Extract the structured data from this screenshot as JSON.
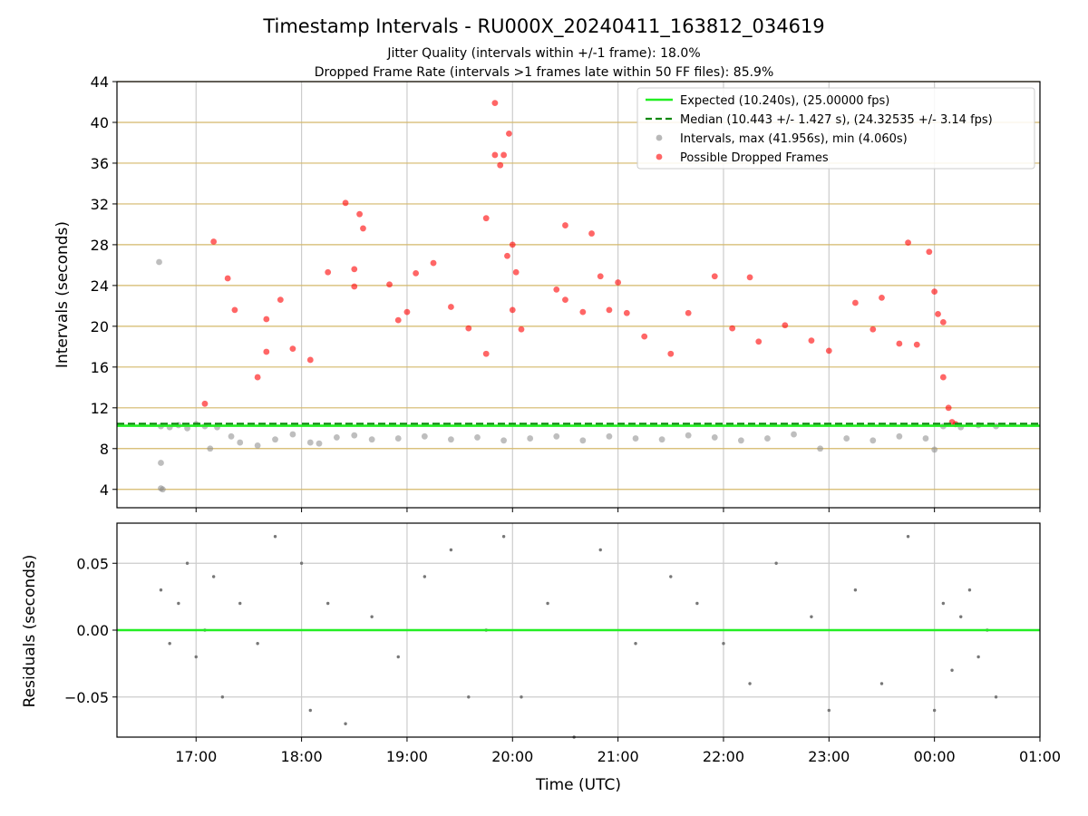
{
  "title": "Timestamp Intervals - RU000X_20240411_163812_034619",
  "subtitle_1": "Jitter Quality (intervals within +/-1 frame): 18.0%",
  "subtitle_2": "Dropped Frame Rate (intervals >1 frames late within 50 FF files): 85.9%",
  "colors": {
    "expected": "#22ee22",
    "median": "#118811",
    "intervals": "#888888",
    "dropped": "#ff0000",
    "yhgrid": "#d4b86a",
    "grid": "#cccccc"
  },
  "chart_data": [
    {
      "type": "scatter",
      "panel": "intervals",
      "ylabel": "Intervals (seconds)",
      "xlim": [
        "16:15",
        "01:00"
      ],
      "ylim": [
        2.2,
        44
      ],
      "yticks": [
        "4",
        "8",
        "12",
        "16",
        "20",
        "24",
        "28",
        "32",
        "36",
        "40",
        "44"
      ],
      "grid": true,
      "legend_position": "top-right",
      "legend": [
        "Expected (10.240s), (25.00000 fps)",
        "Median (10.443 +/- 1.427 s), (24.32535 +/- 3.14 fps)",
        "Intervals, max (41.956s), min (4.060s)",
        "Possible Dropped Frames"
      ],
      "expected_line": 10.24,
      "median_line": 10.443,
      "series": [
        {
          "name": "Intervals, max (41.956s), min (4.060s)",
          "points": [
            [
              "16:39",
              26.3
            ],
            [
              "16:40",
              6.6
            ],
            [
              "16:40",
              4.1
            ],
            [
              "16:41",
              4.0
            ],
            [
              "16:40",
              10.2
            ],
            [
              "16:45",
              10.1
            ],
            [
              "16:50",
              10.3
            ],
            [
              "16:55",
              10.0
            ],
            [
              "17:00",
              10.4
            ],
            [
              "17:05",
              10.2
            ],
            [
              "17:08",
              8.0
            ],
            [
              "17:12",
              10.1
            ],
            [
              "17:20",
              9.2
            ],
            [
              "17:25",
              8.6
            ],
            [
              "17:35",
              8.3
            ],
            [
              "17:45",
              8.9
            ],
            [
              "17:55",
              9.4
            ],
            [
              "18:05",
              8.6
            ],
            [
              "18:10",
              8.5
            ],
            [
              "18:20",
              9.1
            ],
            [
              "18:30",
              9.3
            ],
            [
              "18:40",
              8.9
            ],
            [
              "18:55",
              9.0
            ],
            [
              "19:10",
              9.2
            ],
            [
              "19:25",
              8.9
            ],
            [
              "19:40",
              9.1
            ],
            [
              "19:55",
              8.8
            ],
            [
              "20:10",
              9.0
            ],
            [
              "20:25",
              9.2
            ],
            [
              "20:40",
              8.8
            ],
            [
              "20:55",
              9.2
            ],
            [
              "21:10",
              9.0
            ],
            [
              "21:25",
              8.9
            ],
            [
              "21:40",
              9.3
            ],
            [
              "21:55",
              9.1
            ],
            [
              "22:10",
              8.8
            ],
            [
              "22:25",
              9.0
            ],
            [
              "22:40",
              9.4
            ],
            [
              "22:55",
              8.0
            ],
            [
              "23:10",
              9.0
            ],
            [
              "23:25",
              8.8
            ],
            [
              "23:40",
              9.2
            ],
            [
              "23:55",
              9.0
            ],
            [
              "00:00",
              7.9
            ],
            [
              "00:05",
              10.2
            ],
            [
              "00:15",
              10.1
            ],
            [
              "00:25",
              10.3
            ],
            [
              "00:35",
              10.2
            ]
          ]
        },
        {
          "name": "Possible Dropped Frames",
          "points": [
            [
              "17:05",
              12.4
            ],
            [
              "17:10",
              28.3
            ],
            [
              "17:18",
              24.7
            ],
            [
              "17:22",
              21.6
            ],
            [
              "17:35",
              15.0
            ],
            [
              "17:40",
              20.7
            ],
            [
              "17:48",
              22.6
            ],
            [
              "17:40",
              17.5
            ],
            [
              "17:55",
              17.8
            ],
            [
              "18:05",
              16.7
            ],
            [
              "18:15",
              25.3
            ],
            [
              "18:25",
              32.1
            ],
            [
              "18:30",
              23.9
            ],
            [
              "18:33",
              31.0
            ],
            [
              "18:35",
              29.6
            ],
            [
              "18:30",
              25.6
            ],
            [
              "18:50",
              24.1
            ],
            [
              "18:55",
              20.6
            ],
            [
              "19:00",
              21.4
            ],
            [
              "19:05",
              25.2
            ],
            [
              "19:15",
              26.2
            ],
            [
              "19:25",
              21.9
            ],
            [
              "19:35",
              19.8
            ],
            [
              "19:45",
              30.6
            ],
            [
              "19:45",
              17.3
            ],
            [
              "19:50",
              36.8
            ],
            [
              "19:50",
              41.9
            ],
            [
              "19:53",
              35.8
            ],
            [
              "19:55",
              36.8
            ],
            [
              "19:58",
              38.9
            ],
            [
              "19:57",
              26.9
            ],
            [
              "20:00",
              28.0
            ],
            [
              "20:02",
              25.3
            ],
            [
              "20:00",
              21.6
            ],
            [
              "20:05",
              19.7
            ],
            [
              "20:25",
              23.6
            ],
            [
              "20:30",
              29.9
            ],
            [
              "20:30",
              22.6
            ],
            [
              "20:40",
              21.4
            ],
            [
              "20:45",
              29.1
            ],
            [
              "20:50",
              24.9
            ],
            [
              "20:55",
              21.6
            ],
            [
              "21:00",
              24.3
            ],
            [
              "21:05",
              21.3
            ],
            [
              "21:15",
              19.0
            ],
            [
              "21:30",
              17.3
            ],
            [
              "21:40",
              21.3
            ],
            [
              "21:55",
              24.9
            ],
            [
              "22:05",
              19.8
            ],
            [
              "22:15",
              24.8
            ],
            [
              "22:20",
              18.5
            ],
            [
              "22:35",
              20.1
            ],
            [
              "22:50",
              18.6
            ],
            [
              "23:00",
              17.6
            ],
            [
              "23:15",
              22.3
            ],
            [
              "23:25",
              19.7
            ],
            [
              "23:30",
              22.8
            ],
            [
              "23:40",
              18.3
            ],
            [
              "23:45",
              28.2
            ],
            [
              "23:50",
              18.2
            ],
            [
              "23:57",
              27.3
            ],
            [
              "24:00",
              23.4
            ],
            [
              "24:02",
              21.2
            ],
            [
              "24:05",
              20.4
            ],
            [
              "24:05",
              15.0
            ],
            [
              "24:08",
              12.0
            ],
            [
              "24:10",
              10.6
            ],
            [
              "24:12",
              10.4
            ]
          ]
        }
      ]
    },
    {
      "type": "scatter",
      "panel": "residuals",
      "ylabel": "Residuals (seconds)",
      "xlabel": "Time (UTC)",
      "xlim": [
        "16:15",
        "01:00"
      ],
      "ylim": [
        -0.08,
        0.08
      ],
      "yticks": [
        "−0.05",
        "0.00",
        "0.05"
      ],
      "xticks": [
        "17:00",
        "18:00",
        "19:00",
        "20:00",
        "21:00",
        "22:00",
        "23:00",
        "00:00",
        "01:00"
      ],
      "grid": true,
      "zero_line": 0,
      "series": [
        {
          "name": "",
          "points": [
            [
              "16:40",
              0.03
            ],
            [
              "16:45",
              -0.01
            ],
            [
              "16:50",
              0.02
            ],
            [
              "16:55",
              0.05
            ],
            [
              "17:00",
              -0.02
            ],
            [
              "17:05",
              0.0
            ],
            [
              "17:10",
              0.04
            ],
            [
              "17:15",
              -0.05
            ],
            [
              "17:25",
              0.02
            ],
            [
              "17:35",
              -0.01
            ],
            [
              "17:45",
              0.07
            ],
            [
              "18:00",
              0.05
            ],
            [
              "18:05",
              -0.06
            ],
            [
              "18:15",
              0.02
            ],
            [
              "18:25",
              -0.07
            ],
            [
              "18:40",
              0.01
            ],
            [
              "18:55",
              -0.02
            ],
            [
              "19:10",
              0.04
            ],
            [
              "19:25",
              0.06
            ],
            [
              "19:35",
              -0.05
            ],
            [
              "19:45",
              0.0
            ],
            [
              "19:55",
              0.07
            ],
            [
              "20:05",
              -0.05
            ],
            [
              "20:20",
              0.02
            ],
            [
              "20:35",
              -0.08
            ],
            [
              "20:50",
              0.06
            ],
            [
              "21:10",
              -0.01
            ],
            [
              "21:30",
              0.04
            ],
            [
              "21:45",
              0.02
            ],
            [
              "22:00",
              -0.01
            ],
            [
              "22:15",
              -0.04
            ],
            [
              "22:30",
              0.05
            ],
            [
              "22:50",
              0.01
            ],
            [
              "23:00",
              -0.06
            ],
            [
              "23:15",
              0.03
            ],
            [
              "23:30",
              -0.04
            ],
            [
              "23:45",
              0.07
            ],
            [
              "00:00",
              -0.06
            ],
            [
              "00:05",
              0.02
            ],
            [
              "00:10",
              -0.03
            ],
            [
              "00:15",
              0.01
            ],
            [
              "00:20",
              0.03
            ],
            [
              "00:25",
              -0.02
            ],
            [
              "00:30",
              0.0
            ],
            [
              "00:35",
              -0.05
            ]
          ]
        }
      ]
    }
  ]
}
